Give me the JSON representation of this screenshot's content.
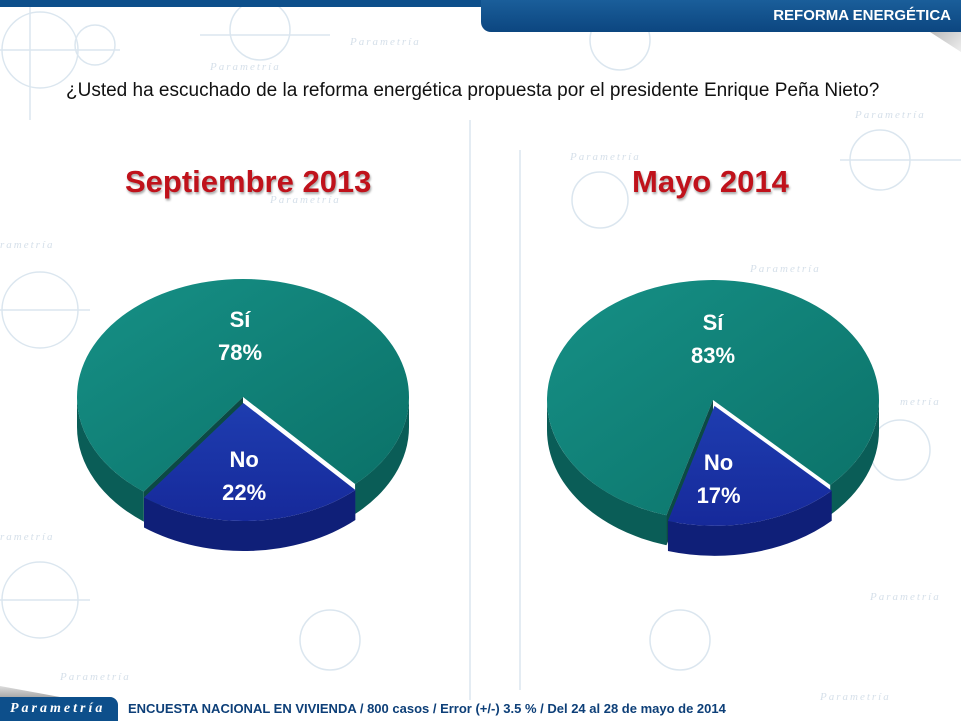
{
  "header": {
    "section_title": "REFORMA ENERGÉTICA"
  },
  "question": "¿Usted ha escuchado de la reforma energética propuesta por el presidente Enrique Peña Nieto?",
  "footer": {
    "logo": "Parametría",
    "note": "ENCUESTA NACIONAL EN VIVIENDA / 800 casos / Error (+/-) 3.5 % / Del 24 al 28 de mayo de 2014"
  },
  "background_watermark": "Parametría",
  "colors": {
    "si": "#0f8077",
    "no": "#1a2fa0",
    "title": "#c0121b",
    "brand": "#0d4f8b"
  },
  "chart_data": [
    {
      "type": "pie",
      "title": "Septiembre 2013",
      "categories": [
        "Sí",
        "No"
      ],
      "values": [
        78,
        22
      ],
      "labels": [
        {
          "name": "Sí",
          "value": "78%"
        },
        {
          "name": "No",
          "value": "22%"
        }
      ]
    },
    {
      "type": "pie",
      "title": "Mayo 2014",
      "categories": [
        "Sí",
        "No"
      ],
      "values": [
        83,
        17
      ],
      "labels": [
        {
          "name": "Sí",
          "value": "83%"
        },
        {
          "name": "No",
          "value": "17%"
        }
      ]
    }
  ]
}
